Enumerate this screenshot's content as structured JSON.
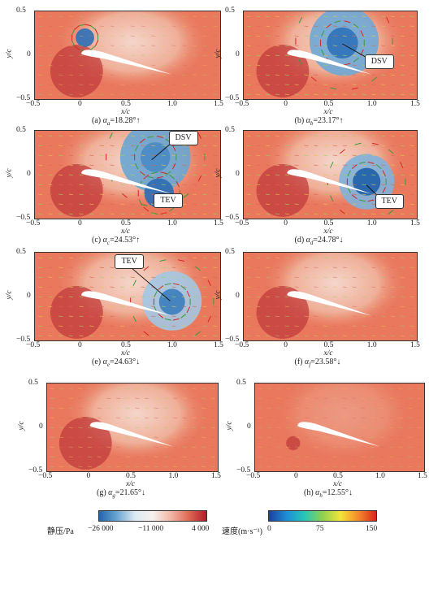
{
  "figure": {
    "x_label": "x/c",
    "y_label": "y/c",
    "x_ticks": [
      "−0.5",
      "0",
      "0.5",
      "1.0",
      "1.5"
    ],
    "y_ticks": [
      "0.5",
      "0",
      "−0.5"
    ],
    "panels": [
      {
        "id": "a",
        "prefix": "(a) ",
        "alpha": "α",
        "sub": "a",
        "angle": "=18.28°↑",
        "callouts": []
      },
      {
        "id": "b",
        "prefix": "(b) ",
        "alpha": "α",
        "sub": "b",
        "angle": "=23.17°↑",
        "callouts": [
          "DSV"
        ]
      },
      {
        "id": "c",
        "prefix": "(c) ",
        "alpha": "α",
        "sub": "c",
        "angle": "=24.53°↑",
        "callouts": [
          "DSV",
          "TEV"
        ]
      },
      {
        "id": "d",
        "prefix": "(d) ",
        "alpha": "α",
        "sub": "d",
        "angle": "=24.78°↓",
        "callouts": [
          "TEV"
        ]
      },
      {
        "id": "e",
        "prefix": "(e) ",
        "alpha": "α",
        "sub": "e",
        "angle": "=24.63°↓",
        "callouts": [
          "TEV"
        ]
      },
      {
        "id": "f",
        "prefix": "(f) ",
        "alpha": "α",
        "sub": "f",
        "angle": "=23.58°↓",
        "callouts": []
      },
      {
        "id": "g",
        "prefix": "(g) ",
        "alpha": "α",
        "sub": "g",
        "angle": "=21.65°↓",
        "callouts": []
      },
      {
        "id": "h",
        "prefix": "(h) ",
        "alpha": "α",
        "sub": "h",
        "angle": "=12.55°↓",
        "callouts": []
      }
    ],
    "colorbars": [
      {
        "title": "静压/Pa",
        "ticks": [
          "−26 000",
          "−11 000",
          "4 000"
        ],
        "colors": [
          "#2166ac",
          "#6aa5d2",
          "#dce9f2",
          "#f7f0ee",
          "#f2b7a6",
          "#e06a55",
          "#b01c2a"
        ]
      },
      {
        "title": "速度(m·s⁻¹)",
        "ticks": [
          "0",
          "75",
          "150"
        ],
        "colors": [
          "#1c3f9e",
          "#1d8fd6",
          "#27c6b7",
          "#8fd14f",
          "#f3e43a",
          "#f48a2a",
          "#d7261e"
        ]
      }
    ]
  }
}
